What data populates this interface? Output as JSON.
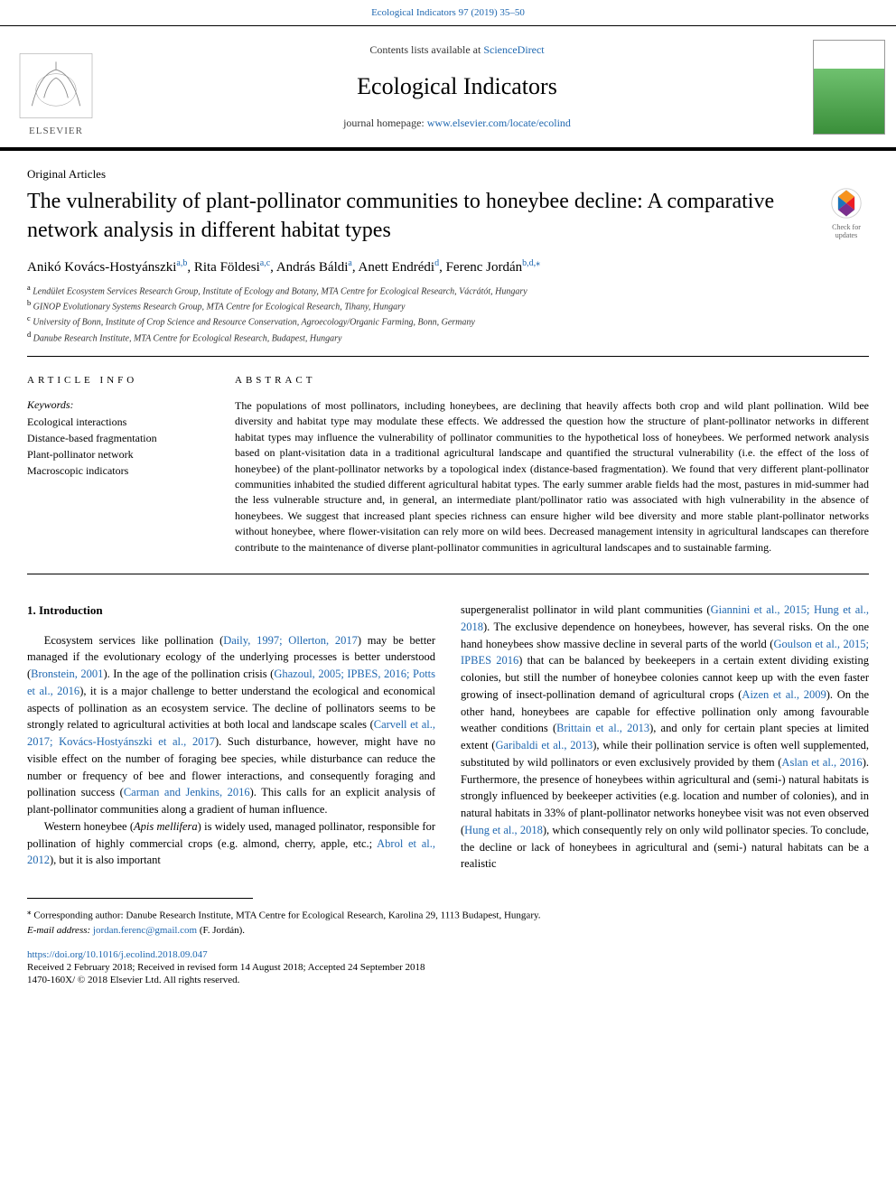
{
  "header": {
    "top_link_text": "Ecological Indicators 97 (2019) 35–50",
    "contents_prefix": "Contents lists available at ",
    "contents_link": "ScienceDirect",
    "journal": "Ecological Indicators",
    "homepage_prefix": "journal homepage: ",
    "homepage_link": "www.elsevier.com/locate/ecolind",
    "elsevier": "ELSEVIER"
  },
  "article": {
    "section_label": "Original Articles",
    "title": "The vulnerability of plant-pollinator communities to honeybee decline: A comparative network analysis in different habitat types",
    "check_label": "Check for updates",
    "authors_html": "Anikó Kovács-Hostyánszki",
    "authors": [
      {
        "name": "Anikó Kovács-Hostyánszki",
        "sup": "a,b"
      },
      {
        "name": "Rita Földesi",
        "sup": "a,c"
      },
      {
        "name": "András Báldi",
        "sup": "a"
      },
      {
        "name": "Anett Endrédi",
        "sup": "d"
      },
      {
        "name": "Ferenc Jordán",
        "sup": "b,d,⁎"
      }
    ],
    "affiliations": [
      {
        "sup": "a",
        "text": "Lendület Ecosystem Services Research Group, Institute of Ecology and Botany, MTA Centre for Ecological Research, Vácrátót, Hungary"
      },
      {
        "sup": "b",
        "text": "GINOP Evolutionary Systems Research Group, MTA Centre for Ecological Research, Tihany, Hungary"
      },
      {
        "sup": "c",
        "text": "University of Bonn, Institute of Crop Science and Resource Conservation, Agroecology/Organic Farming, Bonn, Germany"
      },
      {
        "sup": "d",
        "text": "Danube Research Institute, MTA Centre for Ecological Research, Budapest, Hungary"
      }
    ]
  },
  "info": {
    "head": "ARTICLE INFO",
    "keywords_label": "Keywords:",
    "keywords": [
      "Ecological interactions",
      "Distance-based fragmentation",
      "Plant-pollinator network",
      "Macroscopic indicators"
    ]
  },
  "abstract": {
    "head": "ABSTRACT",
    "text": "The populations of most pollinators, including honeybees, are declining that heavily affects both crop and wild plant pollination. Wild bee diversity and habitat type may modulate these effects. We addressed the question how the structure of plant-pollinator networks in different habitat types may influence the vulnerability of pollinator communities to the hypothetical loss of honeybees. We performed network analysis based on plant-visitation data in a traditional agricultural landscape and quantified the structural vulnerability (i.e. the effect of the loss of honeybee) of the plant-pollinator networks by a topological index (distance-based fragmentation). We found that very different plant-pollinator communities inhabited the studied different agricultural habitat types. The early summer arable fields had the most, pastures in mid-summer had the less vulnerable structure and, in general, an intermediate plant/pollinator ratio was associated with high vulnerability in the absence of honeybees. We suggest that increased plant species richness can ensure higher wild bee diversity and more stable plant-pollinator networks without honeybee, where flower-visitation can rely more on wild bees. Decreased management intensity in agricultural landscapes can therefore contribute to the maintenance of diverse plant-pollinator communities in agricultural landscapes and to sustainable farming."
  },
  "body": {
    "intro_head": "1. Introduction",
    "col1_p1_a": "Ecosystem services like pollination (",
    "col1_p1_cite1": "Daily, 1997; Ollerton, 2017",
    "col1_p1_b": ") may be better managed if the evolutionary ecology of the underlying processes is better understood (",
    "col1_p1_cite2": "Bronstein, 2001",
    "col1_p1_c": "). In the age of the pollination crisis (",
    "col1_p1_cite3": "Ghazoul, 2005; IPBES, 2016; Potts et al., 2016",
    "col1_p1_d": "), it is a major challenge to better understand the ecological and economical aspects of pollination as an ecosystem service. The decline of pollinators seems to be strongly related to agricultural activities at both local and landscape scales (",
    "col1_p1_cite4": "Carvell et al., 2017; Kovács-Hostyánszki et al., 2017",
    "col1_p1_e": "). Such disturbance, however, might have no visible effect on the number of foraging bee species, while disturbance can reduce the number or frequency of bee and flower interactions, and consequently foraging and pollination success (",
    "col1_p1_cite5": "Carman and Jenkins, 2016",
    "col1_p1_f": "). This calls for an explicit analysis of plant-pollinator communities along a gradient of human influence.",
    "col1_p2_a": "Western honeybee (",
    "col1_p2_ital": "Apis mellifera",
    "col1_p2_b": ") is widely used, managed pollinator, responsible for pollination of highly commercial crops (e.g. almond, cherry, apple, etc.; ",
    "col1_p2_cite1": "Abrol et al., 2012",
    "col1_p2_c": "), but it is also important",
    "col2_p1_a": "supergeneralist pollinator in wild plant communities (",
    "col2_p1_cite1": "Giannini et al., 2015; Hung et al., 2018",
    "col2_p1_b": "). The exclusive dependence on honeybees, however, has several risks. On the one hand honeybees show massive decline in several parts of the world (",
    "col2_p1_cite2": "Goulson et al., 2015; IPBES 2016",
    "col2_p1_c": ") that can be balanced by beekeepers in a certain extent dividing existing colonies, but still the number of honeybee colonies cannot keep up with the even faster growing of insect-pollination demand of agricultural crops (",
    "col2_p1_cite3": "Aizen et al., 2009",
    "col2_p1_d": "). On the other hand, honeybees are capable for effective pollination only among favourable weather conditions (",
    "col2_p1_cite4": "Brittain et al., 2013",
    "col2_p1_e": "), and only for certain plant species at limited extent (",
    "col2_p1_cite5": "Garibaldi et al., 2013",
    "col2_p1_f": "), while their pollination service is often well supplemented, substituted by wild pollinators or even exclusively provided by them (",
    "col2_p1_cite6": "Aslan et al., 2016",
    "col2_p1_g": "). Furthermore, the presence of honeybees within agricultural and (semi-) natural habitats is strongly influenced by beekeeper activities (e.g. location and number of colonies), and in natural habitats in 33% of plant-pollinator networks honeybee visit was not even observed (",
    "col2_p1_cite7": "Hung et al., 2018",
    "col2_p1_h": "), which consequently rely on only wild pollinator species. To conclude, the decline or lack of honeybees in agricultural and (semi-) natural habitats can be a realistic"
  },
  "footer": {
    "corr_marker": "⁎",
    "corr_text": " Corresponding author: Danube Research Institute, MTA Centre for Ecological Research, Karolina 29, 1113 Budapest, Hungary.",
    "email_label": "E-mail address: ",
    "email": "jordan.ferenc@gmail.com",
    "email_suffix": " (F. Jordán).",
    "doi": "https://doi.org/10.1016/j.ecolind.2018.09.047",
    "received": "Received 2 February 2018; Received in revised form 14 August 2018; Accepted 24 September 2018",
    "issn": "1470-160X/ © 2018 Elsevier Ltd. All rights reserved."
  },
  "colors": {
    "link": "#2068b0",
    "text": "#000000",
    "cover_green1": "#6fc16f",
    "cover_green2": "#3a8f3a",
    "badge_orange": "#f7931e",
    "badge_blue": "#1b75bb",
    "badge_red": "#ed1c24"
  }
}
